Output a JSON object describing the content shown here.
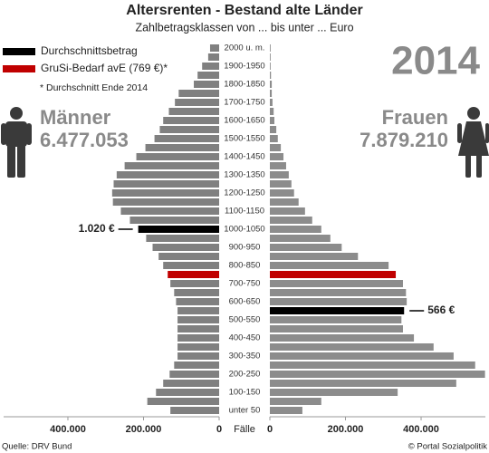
{
  "chart_data": {
    "type": "pyramid",
    "title": "Altersrenten - Bestand alte Länder",
    "subtitle": "Zahlbetragsklassen von ... bis unter ... Euro",
    "year": "2014",
    "footnote": "* Durchschnitt Ende 2014",
    "source": "Quelle: DRV Bund",
    "credit": "© Portal Sozialpolitik",
    "x_label": "Fälle",
    "legend": [
      {
        "label": "Durchschnittsbetrag",
        "color": "#000000"
      },
      {
        "label": "GruSi-Bedarf avE (769 €)*",
        "color": "#c00000"
      }
    ],
    "categories": [
      "2000 u. m.",
      null,
      "1900-1950",
      null,
      "1800-1850",
      null,
      "1700-1750",
      null,
      "1600-1650",
      null,
      "1500-1550",
      null,
      "1400-1450",
      null,
      "1300-1350",
      null,
      "1200-1250",
      null,
      "1100-1150",
      null,
      "1000-1050",
      null,
      "900-950",
      null,
      "800-850",
      null,
      "700-750",
      null,
      "600-650",
      null,
      "500-550",
      null,
      "400-450",
      null,
      "300-350",
      null,
      "200-250",
      null,
      "100-150",
      null,
      "unter 50"
    ],
    "xlim": [
      0,
      570000
    ],
    "xticks": [
      0,
      {
        "value": 200000,
        "label": "200.000"
      },
      {
        "value": 400000,
        "label": "400.000"
      }
    ],
    "series": [
      {
        "name": "Männer",
        "side": "left",
        "total": {
          "value": 6477053,
          "label": "6.477.053"
        },
        "annotation": "1.020 €",
        "values": [
          24000,
          29000,
          45000,
          57000,
          67000,
          107000,
          117000,
          133000,
          148000,
          157000,
          171000,
          195000,
          219000,
          250000,
          271000,
          279000,
          283000,
          281000,
          260000,
          236000,
          214000,
          193000,
          176000,
          160000,
          148000,
          136000,
          129000,
          119000,
          114000,
          110000,
          110000,
          110000,
          110000,
          110000,
          110000,
          119000,
          131000,
          148000,
          167000,
          190000,
          129000
        ],
        "colors": [
          "#808080",
          "#808080",
          "#808080",
          "#808080",
          "#808080",
          "#808080",
          "#808080",
          "#808080",
          "#808080",
          "#808080",
          "#808080",
          "#808080",
          "#808080",
          "#808080",
          "#808080",
          "#808080",
          "#808080",
          "#808080",
          "#808080",
          "#808080",
          "#000000",
          "#808080",
          "#808080",
          "#808080",
          "#808080",
          "#c00000",
          "#808080",
          "#808080",
          "#808080",
          "#808080",
          "#808080",
          "#808080",
          "#808080",
          "#808080",
          "#808080",
          "#808080",
          "#808080",
          "#808080",
          "#808080",
          "#808080",
          "#808080"
        ]
      },
      {
        "name": "Frauen",
        "side": "right",
        "total": {
          "value": 7879210,
          "label": "7.879.210"
        },
        "annotation": "566 €",
        "values": [
          2000,
          2000,
          2000,
          3000,
          5000,
          5000,
          7000,
          10000,
          12000,
          17000,
          21000,
          29000,
          36000,
          43000,
          50000,
          57000,
          64000,
          76000,
          93000,
          112000,
          136000,
          160000,
          190000,
          233000,
          314000,
          333000,
          352000,
          360000,
          362000,
          355000,
          348000,
          352000,
          381000,
          433000,
          486000,
          543000,
          569000,
          493000,
          338000,
          136000,
          86000
        ],
        "colors": [
          "#8c8c8c",
          "#8c8c8c",
          "#8c8c8c",
          "#8c8c8c",
          "#8c8c8c",
          "#8c8c8c",
          "#8c8c8c",
          "#8c8c8c",
          "#8c8c8c",
          "#8c8c8c",
          "#8c8c8c",
          "#8c8c8c",
          "#8c8c8c",
          "#8c8c8c",
          "#8c8c8c",
          "#8c8c8c",
          "#8c8c8c",
          "#8c8c8c",
          "#8c8c8c",
          "#8c8c8c",
          "#8c8c8c",
          "#8c8c8c",
          "#8c8c8c",
          "#8c8c8c",
          "#8c8c8c",
          "#c00000",
          "#8c8c8c",
          "#8c8c8c",
          "#8c8c8c",
          "#000000",
          "#8c8c8c",
          "#8c8c8c",
          "#8c8c8c",
          "#8c8c8c",
          "#8c8c8c",
          "#8c8c8c",
          "#8c8c8c",
          "#8c8c8c",
          "#8c8c8c",
          "#8c8c8c",
          "#8c8c8c"
        ]
      }
    ]
  }
}
